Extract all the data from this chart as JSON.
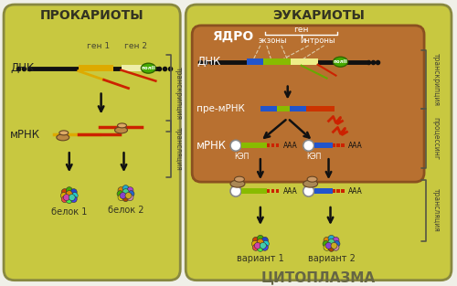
{
  "bg_color": "#f0f0e8",
  "left_box_color": "#c8c840",
  "left_box_edge": "#888840",
  "right_box_outer_color": "#c8c840",
  "right_box_outer_edge": "#888840",
  "nucleus_color": "#b87030",
  "nucleus_edge": "#8a5020",
  "title_left": "ПРОКАРИОТЫ",
  "title_right": "ЭУКАРИОТЫ",
  "title_nucleus": "ЯДРО",
  "title_cytoplasm": "ЦИТОПЛАЗМА",
  "label_dnk_left": "ДНК",
  "label_mrna_left": "мРНК",
  "label_protein1": "белок 1",
  "label_protein2": "белок 2",
  "label_gen1": "ген 1",
  "label_gen2": "ген 2",
  "label_transcript_left": "транскрипция",
  "label_transl_left": "трансляция",
  "label_dnk_right": "ДНК",
  "label_gen_right": "ген",
  "label_exons": "экзоны",
  "label_introns": "интроны",
  "label_premrna": "пре-мРНК",
  "label_mrna_right": "мРНК",
  "label_cap": "КЭП",
  "label_variant1": "вариант 1",
  "label_variant2": "вариант 2",
  "label_transcript_right": "транскрипция",
  "label_processing": "процессинг",
  "label_transl_right": "трансляция",
  "dna_color": "#111111",
  "mrna_red": "#cc2200",
  "mrna_yellow": "#ddaa00",
  "mrna_green": "#66aa00",
  "mrna_blue": "#2255cc",
  "polII_color": "#44aa00",
  "arrow_color": "#111111",
  "bracket_color": "#555544"
}
